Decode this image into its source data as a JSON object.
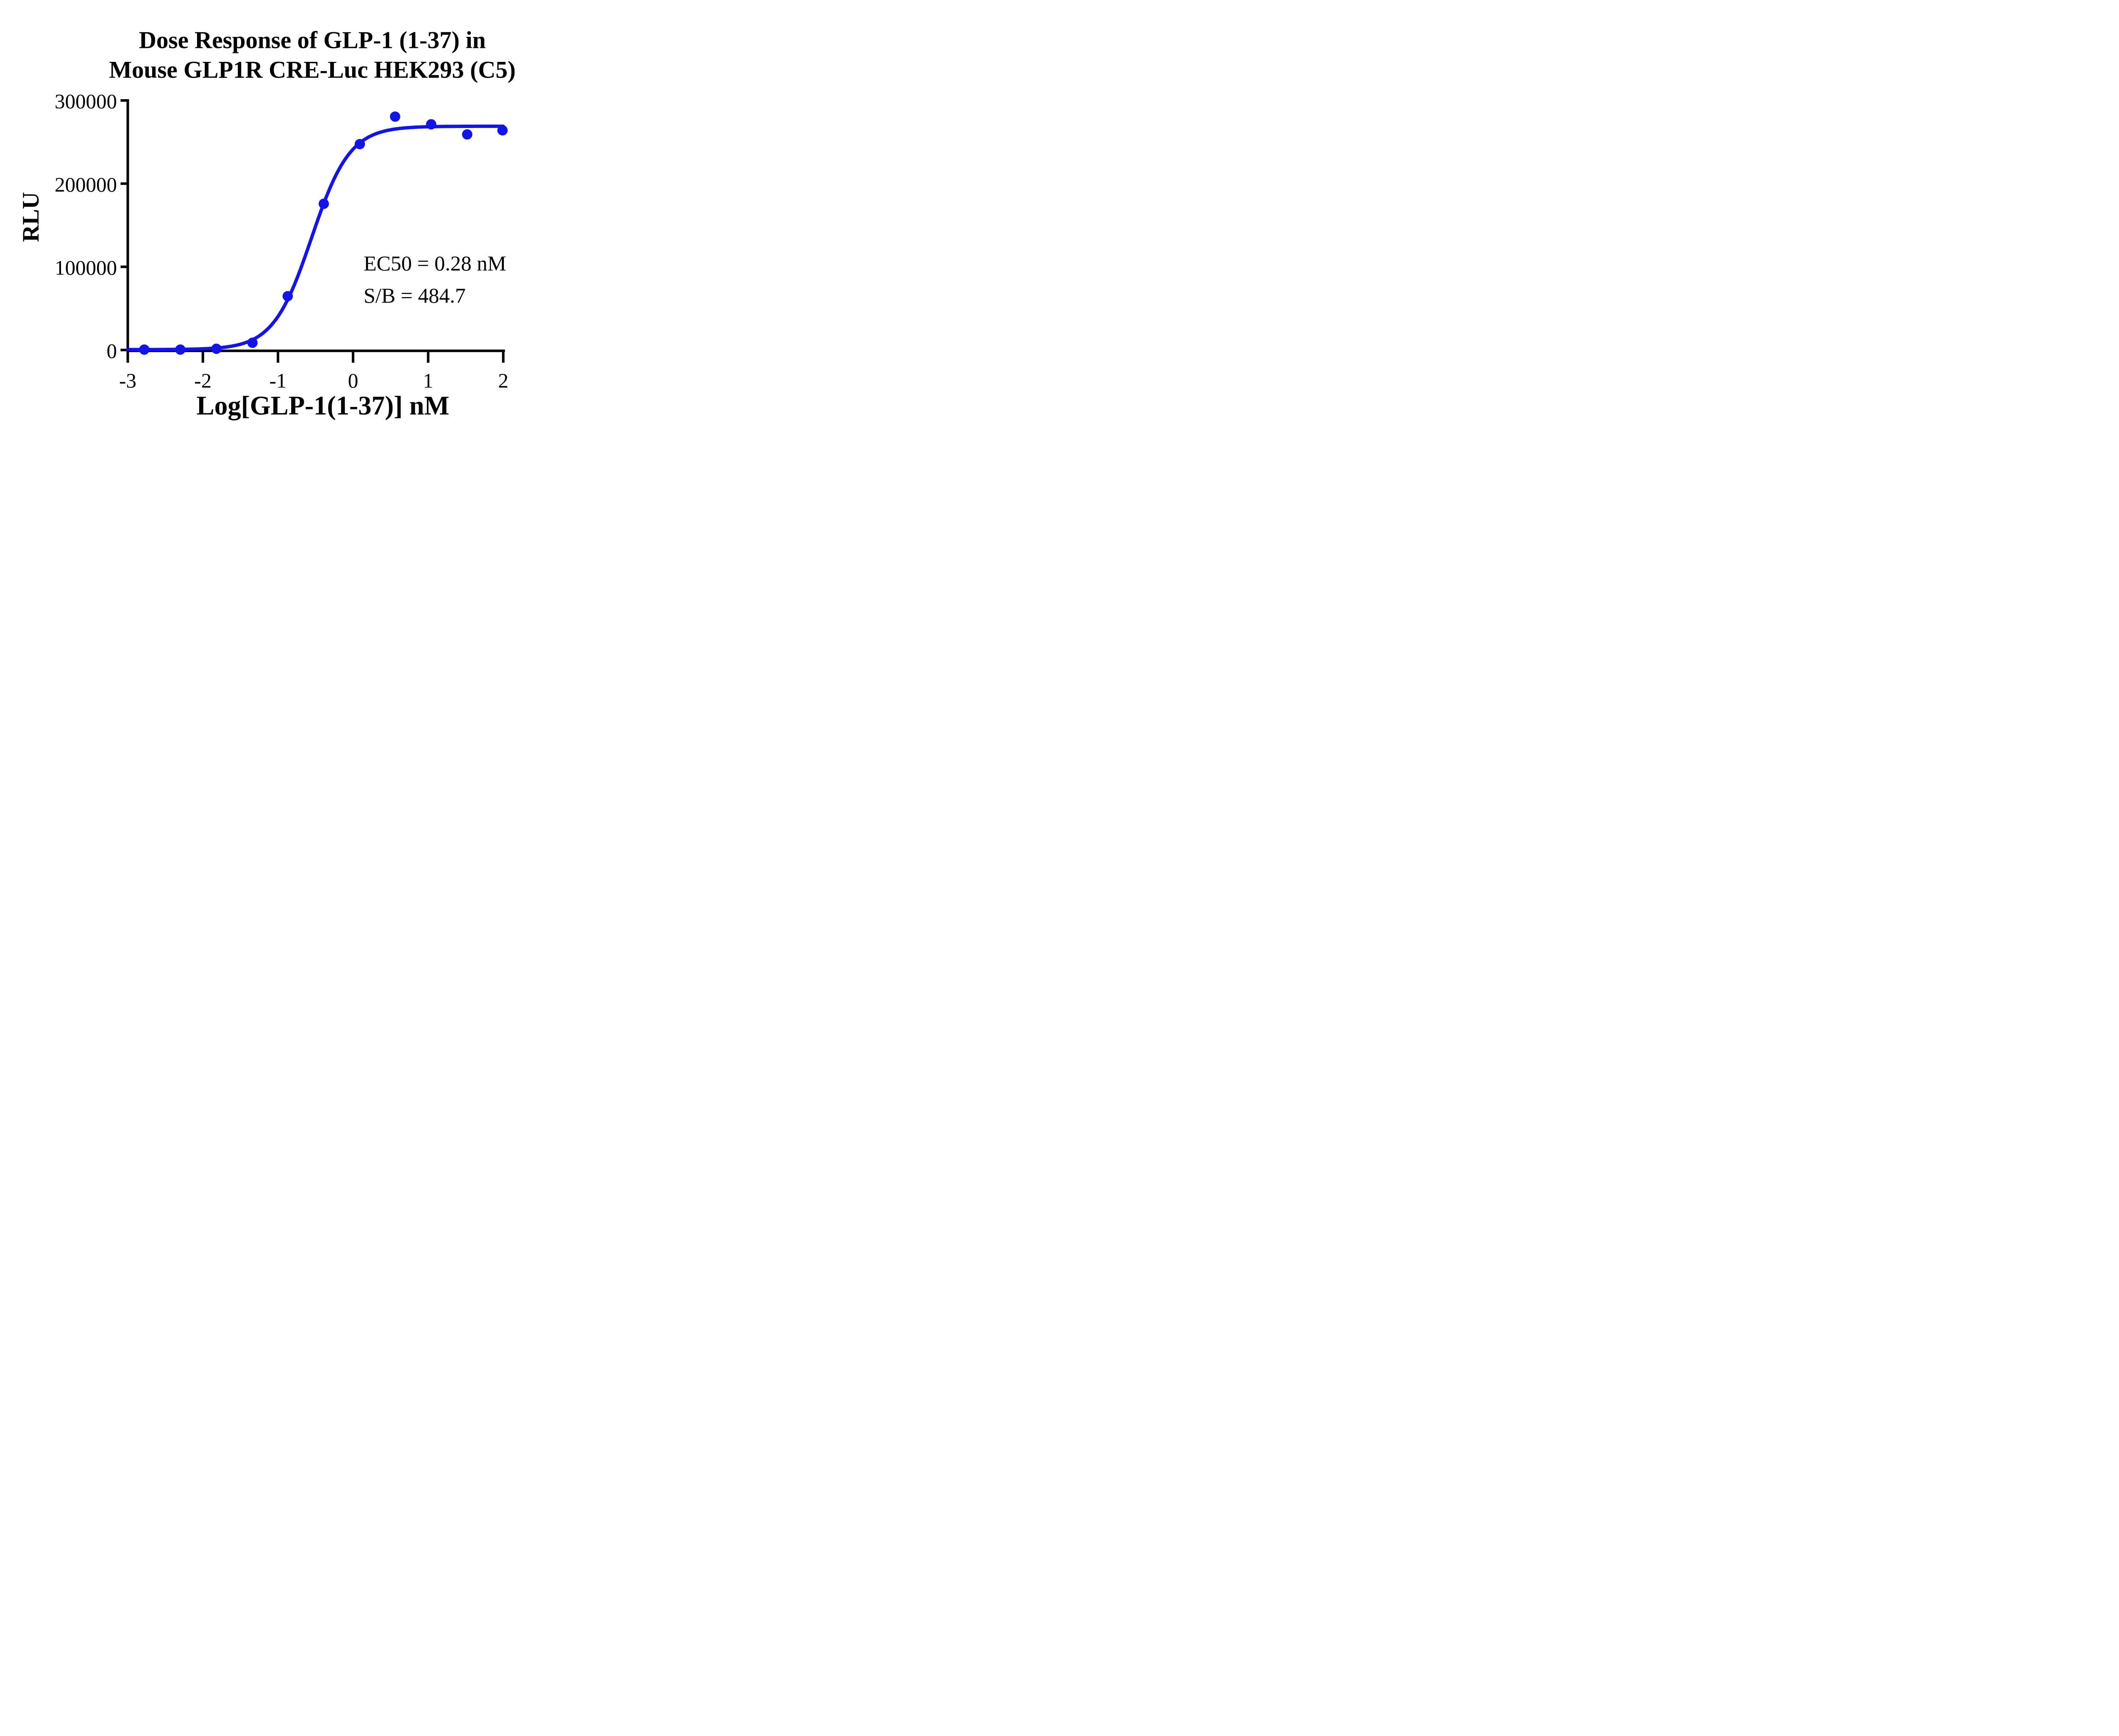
{
  "title": {
    "line1": "Dose Response of GLP-1 (1-37) in",
    "line2": "Mouse GLP1R CRE-Luc HEK293 (C5)"
  },
  "annotation": {
    "line1": "EC50 = 0.28 nM",
    "line2": "S/B = 484.7"
  },
  "colors": {
    "series_blue": "#1414E6",
    "axis_black": "#000000",
    "background": "#FFFFFF"
  },
  "chart_data": {
    "type": "scatter",
    "title": "Dose Response of GLP-1 (1-37) in Mouse GLP1R CRE-Luc HEK293 (C5)",
    "xlabel": "Log[GLP-1(1-37)] nM",
    "ylabel": "RLU",
    "xlim": [
      -3,
      2
    ],
    "ylim": [
      0,
      300000
    ],
    "x_ticks": [
      -3,
      -2,
      -1,
      0,
      1,
      2
    ],
    "x_tick_labels": [
      "-3",
      "-2",
      "-1",
      "0",
      "1",
      "2"
    ],
    "y_ticks": [
      0,
      100000,
      200000,
      300000
    ],
    "y_tick_labels": [
      "0",
      "100000",
      "200000",
      "300000"
    ],
    "grid": false,
    "legend": "none",
    "series": [
      {
        "name": "GLP-1 (1-37)",
        "color": "#1414E6",
        "marker": "filled-circle",
        "x_log_nM": [
          -2.78,
          -2.3,
          -1.82,
          -1.34,
          -0.87,
          -0.39,
          0.09,
          0.56,
          1.04,
          1.52,
          1.99
        ],
        "y_RLU": [
          500,
          500,
          1500,
          8700,
          64700,
          175800,
          247500,
          280600,
          271300,
          259200,
          264100
        ]
      }
    ],
    "fit_curve": {
      "model": "4PL",
      "bottom": 500,
      "top": 269000,
      "log_ec50": -0.553,
      "hill_slope": 1.7
    },
    "annotations": [
      "EC50 = 0.28 nM",
      "S/B = 484.7"
    ],
    "ec50_nM": 0.28,
    "signal_to_background": 484.7
  }
}
